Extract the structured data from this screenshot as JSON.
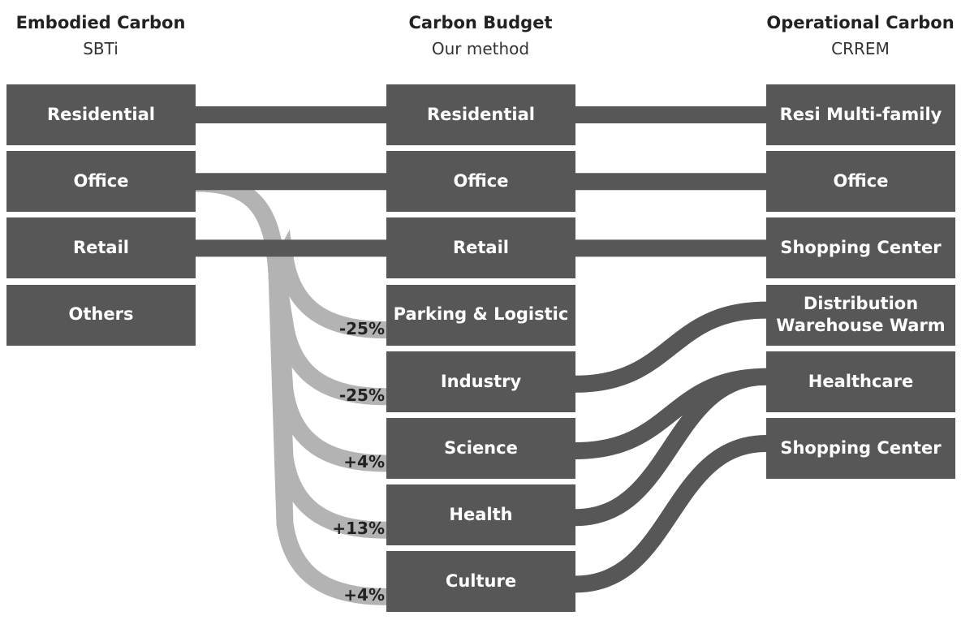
{
  "columns": [
    {
      "title": "Embodied Carbon",
      "subtitle": "SBTi",
      "items": [
        "Residential",
        "Office",
        "Retail",
        "Others"
      ]
    },
    {
      "title": "Carbon Budget",
      "subtitle": "Our method",
      "items": [
        "Residential",
        "Office",
        "Retail",
        "Parking & Logistic",
        "Industry",
        "Science",
        "Health",
        "Culture"
      ]
    },
    {
      "title": "Operational Carbon",
      "subtitle": "CRREM",
      "items": [
        "Resi Multi-family",
        "Office",
        "Shopping Center",
        "Distribution Warehouse Warm",
        "Healthcare",
        "Shopping Center"
      ]
    }
  ],
  "left_links": [
    {
      "from": 0,
      "to": 0,
      "type": "direct"
    },
    {
      "from": 1,
      "to": 1,
      "type": "direct"
    },
    {
      "from": 2,
      "to": 2,
      "type": "direct"
    },
    {
      "from": 1,
      "to": 3,
      "type": "derived",
      "label": "-25%"
    },
    {
      "from": 1,
      "to": 4,
      "type": "derived",
      "label": "-25%"
    },
    {
      "from": 1,
      "to": 5,
      "type": "derived",
      "label": "+4%"
    },
    {
      "from": 1,
      "to": 6,
      "type": "derived",
      "label": "+13%"
    },
    {
      "from": 1,
      "to": 7,
      "type": "derived",
      "label": "+4%"
    }
  ],
  "right_links": [
    {
      "from": 0,
      "to": 0
    },
    {
      "from": 1,
      "to": 1
    },
    {
      "from": 2,
      "to": 2
    },
    {
      "from": 4,
      "to": 3
    },
    {
      "from": 5,
      "to": 4
    },
    {
      "from": 6,
      "to": 4
    },
    {
      "from": 7,
      "to": 5
    }
  ],
  "colors": {
    "box": "#575757",
    "direct": "#575757",
    "derived": "#b3b3b3"
  }
}
